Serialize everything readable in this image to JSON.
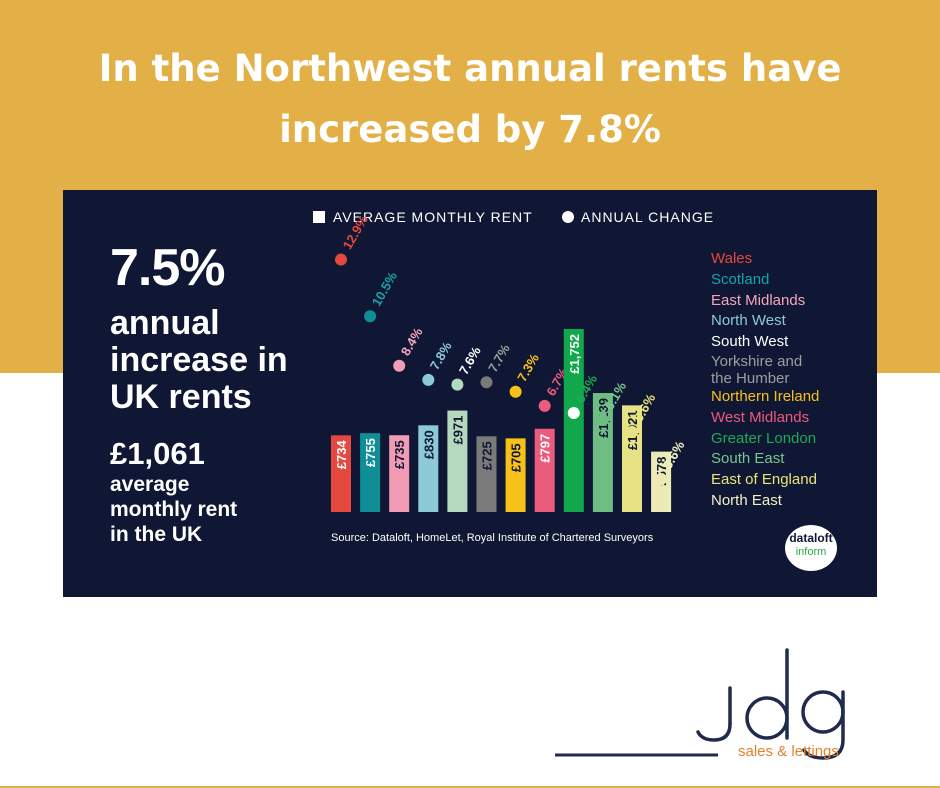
{
  "headline": {
    "line1": "In the Northwest annual rents have",
    "line2": "increased by 7.8%"
  },
  "stats": {
    "pct": "7.5%",
    "pct_text": [
      "annual",
      "increase in",
      "UK rents"
    ],
    "avg_value": "£1,061",
    "avg_text": [
      "average",
      "monthly rent",
      "in the UK"
    ]
  },
  "legend": {
    "rent_label": "AVERAGE MONTHLY RENT",
    "change_label": "ANNUAL CHANGE"
  },
  "source": "Source: Dataloft, HomeLet, Royal Institute of Chartered Surveyors",
  "badge": {
    "line1": "dataloft",
    "line2": "inform"
  },
  "brand": {
    "name": "jdg",
    "tagline": "sales & lettings",
    "color": "#1f2a4e"
  },
  "colors": {
    "band": "#e2b046",
    "panel": "#0f1734"
  },
  "chart_data": {
    "type": "bar",
    "categories": [
      "Wales",
      "Scotland",
      "East Midlands",
      "North West",
      "South West",
      "Yorkshire and the Humber",
      "Northern Ireland",
      "West Midlands",
      "Greater London",
      "South East",
      "East of England",
      "North East"
    ],
    "series": [
      {
        "name": "AVERAGE MONTHLY RENT",
        "values": [
          734,
          755,
          735,
          830,
          971,
          725,
          705,
          797,
          1752,
          1139,
          1021,
          578
        ],
        "labels": [
          "£734",
          "£755",
          "£735",
          "£830",
          "£971",
          "£725",
          "£705",
          "£797",
          "£1,752",
          "£1,139",
          "£1,021",
          "£578"
        ]
      },
      {
        "name": "ANNUAL CHANGE",
        "values": [
          12.9,
          10.5,
          8.4,
          7.8,
          7.6,
          7.7,
          7.3,
          6.7,
          6.4,
          6.1,
          5.6,
          3.6
        ],
        "labels": [
          "12.9%",
          "10.5%",
          "8.4%",
          "7.8%",
          "7.6%",
          "7.7%",
          "7.3%",
          "6.7%",
          "6.4%",
          "6.1%",
          "5.6%",
          "3.6%"
        ]
      }
    ],
    "region_colors": [
      "#e5483f",
      "#0f8e96",
      "#f19cb4",
      "#8ccad5",
      "#b5d9bd",
      "#7a7a7a",
      "#f6c21a",
      "#ea5b7c",
      "#11a84b",
      "#6ebd83",
      "#e7e384",
      "#ecebb6"
    ],
    "region_text_colors": [
      "#e5483f",
      "#17a2ab",
      "#f4a6bd",
      "#8ccad5",
      "#ffffff",
      "#9e9e9e",
      "#f6c21a",
      "#ea5b7c",
      "#1dab50",
      "#79c68e",
      "#e9e47a",
      "#f3f1c8"
    ],
    "region_label_lines": [
      [
        "Wales"
      ],
      [
        "Scotland"
      ],
      [
        "East Midlands"
      ],
      [
        "North West"
      ],
      [
        "South West"
      ],
      [
        "Yorkshire and",
        "the Humber"
      ],
      [
        "Northern Ireland"
      ],
      [
        "West Midlands"
      ],
      [
        "Greater London"
      ],
      [
        "South East"
      ],
      [
        "East of England"
      ],
      [
        "North East"
      ]
    ],
    "legend_placement": "top",
    "grid": false
  }
}
